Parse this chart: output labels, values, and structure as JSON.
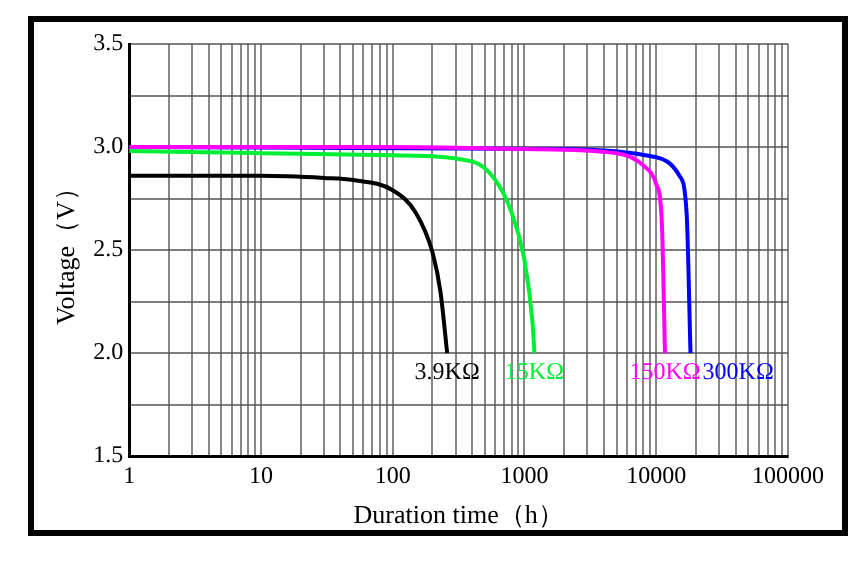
{
  "chart_data": {
    "type": "line",
    "xlabel": "Duration time（h）",
    "ylabel": "Voltage（V）",
    "log": "x",
    "grid": true,
    "legend": false,
    "marker": "none",
    "line_style": "solid",
    "xlim": [
      1,
      100000
    ],
    "ylim": [
      1.5,
      3.5
    ],
    "xticks": [
      1,
      {
        "value": 2,
        "label": null
      },
      {
        "value": 3,
        "label": null
      },
      {
        "value": 4,
        "label": null
      },
      {
        "value": 5,
        "label": null
      },
      {
        "value": 6,
        "label": null
      },
      {
        "value": 7,
        "label": null
      },
      {
        "value": 8,
        "label": null
      },
      {
        "value": 9,
        "label": null
      },
      10,
      {
        "value": 20,
        "label": null
      },
      {
        "value": 30,
        "label": null
      },
      {
        "value": 40,
        "label": null
      },
      {
        "value": 50,
        "label": null
      },
      {
        "value": 60,
        "label": null
      },
      {
        "value": 70,
        "label": null
      },
      {
        "value": 80,
        "label": null
      },
      {
        "value": 90,
        "label": null
      },
      100,
      {
        "value": 200,
        "label": null
      },
      {
        "value": 300,
        "label": null
      },
      {
        "value": 400,
        "label": null
      },
      {
        "value": 500,
        "label": null
      },
      {
        "value": 600,
        "label": null
      },
      {
        "value": 700,
        "label": null
      },
      {
        "value": 800,
        "label": null
      },
      {
        "value": 900,
        "label": null
      },
      1000,
      {
        "value": 2000,
        "label": null
      },
      {
        "value": 3000,
        "label": null
      },
      {
        "value": 4000,
        "label": null
      },
      {
        "value": 5000,
        "label": null
      },
      {
        "value": 6000,
        "label": null
      },
      {
        "value": 7000,
        "label": null
      },
      {
        "value": 8000,
        "label": null
      },
      {
        "value": 9000,
        "label": null
      },
      10000,
      {
        "value": 20000,
        "label": null
      },
      {
        "value": 30000,
        "label": null
      },
      {
        "value": 40000,
        "label": null
      },
      {
        "value": 50000,
        "label": null
      },
      {
        "value": 60000,
        "label": null
      },
      {
        "value": 70000,
        "label": null
      },
      {
        "value": 80000,
        "label": null
      },
      {
        "value": 90000,
        "label": null
      },
      100000
    ],
    "yticks": [
      {
        "value": 1.5,
        "label": "1.5"
      },
      {
        "value": 1.75,
        "label": null
      },
      {
        "value": 2.0,
        "label": "2.0"
      },
      {
        "value": 2.25,
        "label": null
      },
      {
        "value": 2.5,
        "label": "2.5"
      },
      {
        "value": 2.75,
        "label": null
      },
      {
        "value": 3.0,
        "label": "3.0"
      },
      {
        "value": 3.25,
        "label": null
      },
      {
        "value": 3.5,
        "label": "3.5"
      }
    ],
    "series": [
      {
        "name": "3.9KΩ",
        "color": "#000000",
        "x": [
          1,
          10,
          30,
          50,
          100,
          150,
          200,
          230,
          259
        ],
        "values": [
          2.86,
          2.86,
          2.85,
          2.84,
          2.79,
          2.68,
          2.49,
          2.3,
          2.0
        ]
      },
      {
        "name": "15KΩ",
        "color": "#00ee33",
        "x": [
          1,
          10,
          100,
          400,
          600,
          800,
          1000,
          1150,
          1190
        ],
        "values": [
          2.98,
          2.97,
          2.96,
          2.93,
          2.84,
          2.68,
          2.45,
          2.15,
          2.0
        ]
      },
      {
        "name": "150KΩ",
        "color": "#ff00ff",
        "x": [
          1,
          100,
          1000,
          5000,
          8000,
          10000,
          11000,
          11650
        ],
        "values": [
          3.0,
          3.0,
          2.99,
          2.97,
          2.91,
          2.82,
          2.65,
          2.0
        ]
      },
      {
        "name": "300KΩ",
        "color": "#0000ff",
        "x": [
          1,
          2000,
          10000,
          15000,
          17000,
          18200
        ],
        "values": [
          3.0,
          2.99,
          2.95,
          2.86,
          2.68,
          2.0
        ]
      }
    ]
  }
}
